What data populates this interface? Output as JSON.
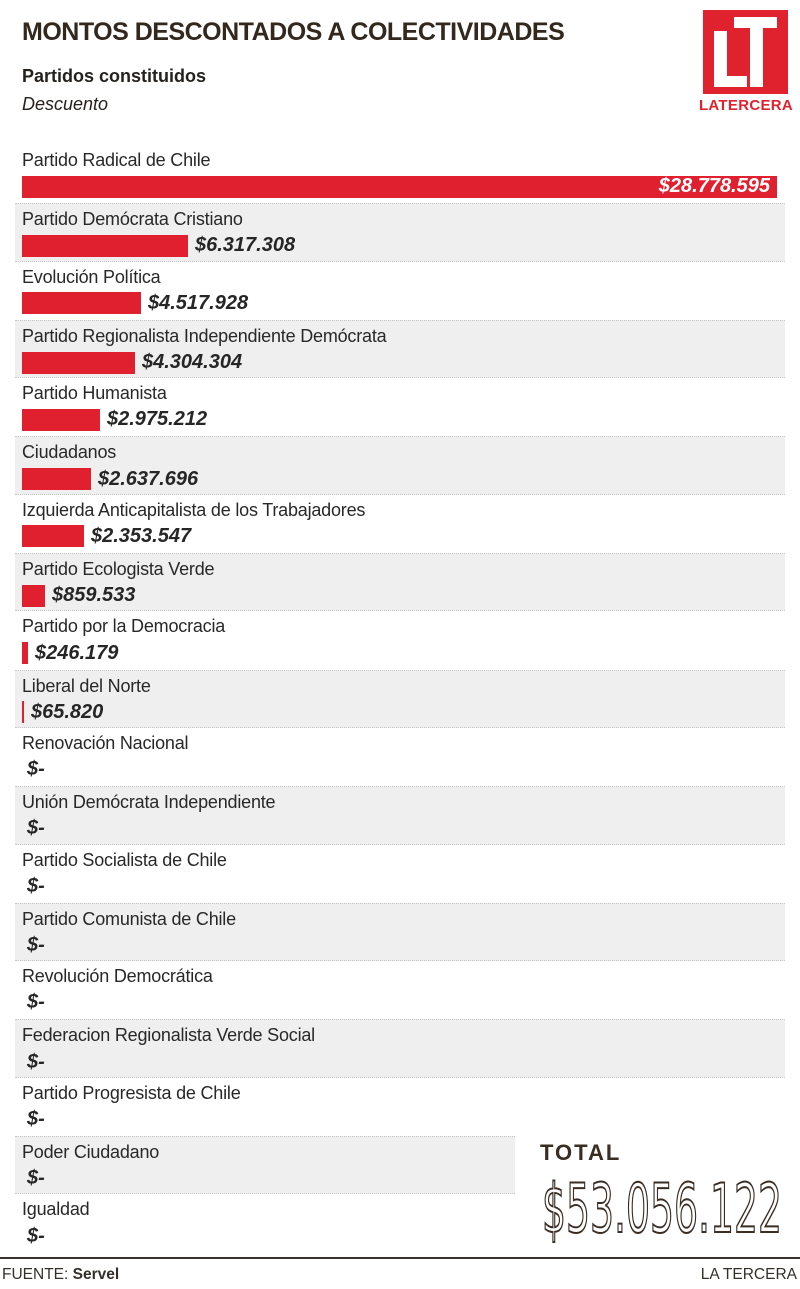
{
  "header": {
    "title": "MONTOS DESCONTADOS A COLECTIVIDADES",
    "subtitle": "Partidos constituidos",
    "axis_label": "Descuento"
  },
  "logo": {
    "initials": "LT",
    "name": "LATERCERA",
    "color": "#e0222e"
  },
  "chart_data": {
    "type": "bar",
    "orientation": "horizontal",
    "title": "Montos descontados a colectividades",
    "xlabel": "Descuento",
    "bar_color": "#e01f2f",
    "max_value": 28778595,
    "zero_label": "$-",
    "rows": [
      {
        "party": "Partido Radical de Chile",
        "value": 28778595,
        "label": "$28.778.595",
        "value_inside_bar": true
      },
      {
        "party": "Partido Demócrata Cristiano",
        "value": 6317308,
        "label": "$6.317.308"
      },
      {
        "party": "Evolución Política",
        "value": 4517928,
        "label": "$4.517.928"
      },
      {
        "party": "Partido Regionalista Independiente Demócrata",
        "value": 4304304,
        "label": "$4.304.304"
      },
      {
        "party": "Partido Humanista",
        "value": 2975212,
        "label": "$2.975.212"
      },
      {
        "party": "Ciudadanos",
        "value": 2637696,
        "label": "$2.637.696"
      },
      {
        "party": "Izquierda Anticapitalista de los Trabajadores",
        "value": 2353547,
        "label": "$2.353.547"
      },
      {
        "party": "Partido Ecologista Verde",
        "value": 859533,
        "label": "$859.533"
      },
      {
        "party": "Partido por la Democracia",
        "value": 246179,
        "label": "$246.179"
      },
      {
        "party": "Liberal del Norte",
        "value": 65820,
        "label": "$65.820"
      },
      {
        "party": "Renovación Nacional",
        "value": 0,
        "label": "$-"
      },
      {
        "party": "Unión Demócrata Independiente",
        "value": 0,
        "label": "$-"
      },
      {
        "party": "Partido Socialista de Chile",
        "value": 0,
        "label": "$-"
      },
      {
        "party": "Partido Comunista de Chile",
        "value": 0,
        "label": "$-"
      },
      {
        "party": "Revolución Democrática",
        "value": 0,
        "label": "$-"
      },
      {
        "party": "Federacion Regionalista Verde Social",
        "value": 0,
        "label": "$-"
      },
      {
        "party": "Partido Progresista de Chile",
        "value": 0,
        "label": "$-"
      },
      {
        "party": "Poder Ciudadano",
        "value": 0,
        "label": "$-"
      },
      {
        "party": "Igualdad",
        "value": 0,
        "label": "$-"
      }
    ]
  },
  "total": {
    "label": "TOTAL",
    "value": "$53.056.122"
  },
  "footer": {
    "source_label": "FUENTE:",
    "source": "Servel",
    "credit": "LA TERCERA"
  }
}
